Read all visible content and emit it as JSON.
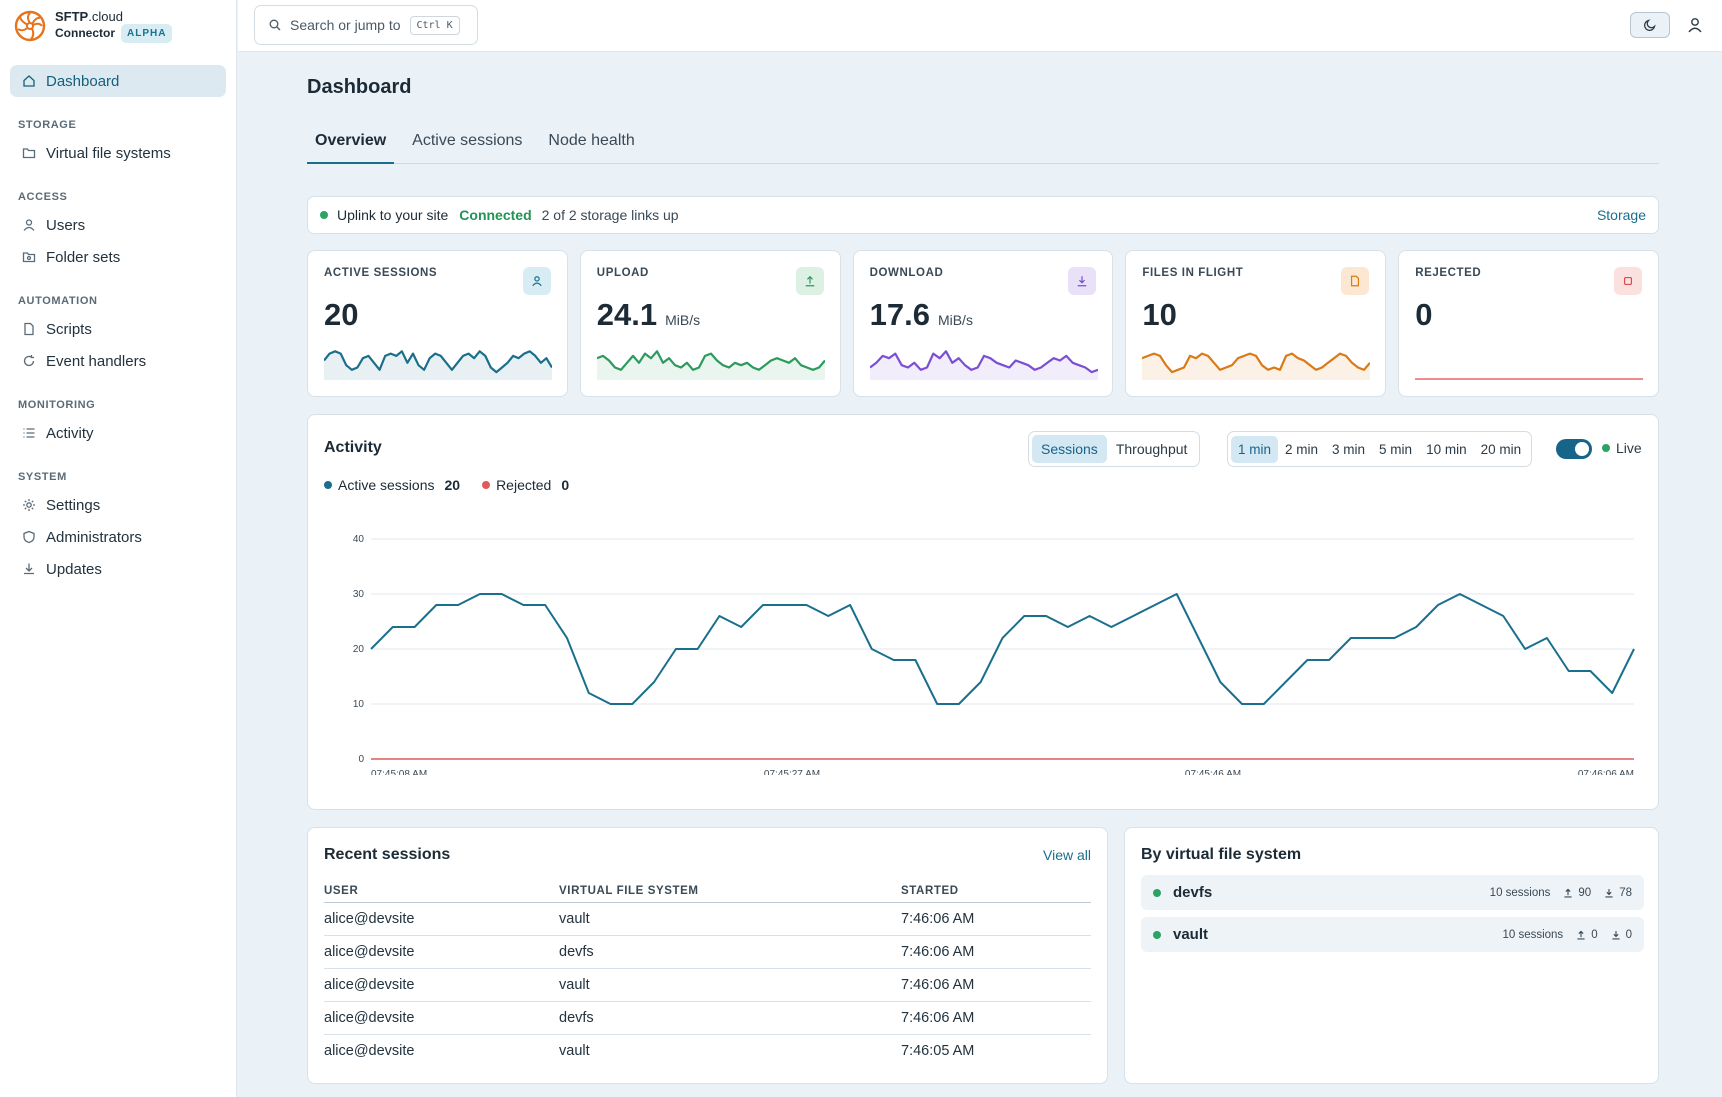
{
  "brand": {
    "name": "SFTP",
    "domain": ".cloud",
    "sub": "Connector",
    "badge": "ALPHA",
    "color": "#e8731a"
  },
  "sidebar": {
    "dashboard": "Dashboard",
    "sections": [
      {
        "title": "STORAGE",
        "items": [
          "Virtual file systems"
        ]
      },
      {
        "title": "ACCESS",
        "items": [
          "Users",
          "Folder sets"
        ]
      },
      {
        "title": "AUTOMATION",
        "items": [
          "Scripts",
          "Event handlers"
        ]
      },
      {
        "title": "MONITORING",
        "items": [
          "Activity"
        ]
      },
      {
        "title": "SYSTEM",
        "items": [
          "Settings",
          "Administrators",
          "Updates"
        ]
      }
    ]
  },
  "search": {
    "placeholder": "Search or jump to",
    "shortcut": "Ctrl K"
  },
  "page": {
    "title": "Dashboard"
  },
  "tabs": [
    "Overview",
    "Active sessions",
    "Node health"
  ],
  "uplink": {
    "label": "Uplink to your site",
    "status": "Connected",
    "links": "2 of 2 storage links up",
    "action": "Storage"
  },
  "stats": [
    {
      "label": "ACTIVE SESSIONS",
      "value": "20",
      "unit": "",
      "color": "#1a6f8c",
      "icon": "user-icon"
    },
    {
      "label": "UPLOAD",
      "value": "24.1",
      "unit": "MiB/s",
      "color": "#2c9a5c",
      "icon": "upload-icon"
    },
    {
      "label": "DOWNLOAD",
      "value": "17.6",
      "unit": "MiB/s",
      "color": "#7a4fd3",
      "icon": "download-icon"
    },
    {
      "label": "FILES IN FLIGHT",
      "value": "10",
      "unit": "",
      "color": "#d97a16",
      "icon": "file-icon"
    },
    {
      "label": "REJECTED",
      "value": "0",
      "unit": "",
      "color": "#e04848",
      "icon": "stop-icon"
    }
  ],
  "activity": {
    "title": "Activity",
    "views": [
      "Sessions",
      "Throughput"
    ],
    "active_view": "Sessions",
    "ranges": [
      "1 min",
      "2 min",
      "3 min",
      "5 min",
      "10 min",
      "20 min"
    ],
    "active_range": "1 min",
    "live_label": "Live",
    "legend": [
      {
        "name": "Active sessions",
        "value": "20",
        "color": "#1a6f8c"
      },
      {
        "name": "Rejected",
        "value": "0",
        "color": "#e05a5a"
      }
    ]
  },
  "chart_data": {
    "type": "line",
    "ylim": [
      0,
      40
    ],
    "yticks": [
      "0",
      "10",
      "20",
      "30",
      "40"
    ],
    "xticks": [
      "07:45:08 AM",
      "07:45:27 AM",
      "07:45:46 AM",
      "07:46:06 AM"
    ],
    "series": [
      {
        "name": "Active sessions",
        "values": [
          20,
          24,
          24,
          28,
          28,
          30,
          30,
          28,
          28,
          22,
          12,
          10,
          10,
          14,
          20,
          20,
          26,
          24,
          28,
          28,
          28,
          26,
          28,
          20,
          18,
          18,
          10,
          10,
          14,
          22,
          26,
          26,
          24,
          26,
          24,
          26,
          28,
          30,
          22,
          14,
          10,
          10,
          14,
          18,
          18,
          22,
          22,
          22,
          24,
          28,
          30,
          28,
          26,
          20,
          22,
          16,
          16,
          12,
          20
        ]
      },
      {
        "name": "Rejected",
        "values": [
          0,
          0,
          0,
          0,
          0,
          0,
          0,
          0,
          0,
          0,
          0,
          0,
          0,
          0,
          0,
          0,
          0,
          0,
          0,
          0,
          0,
          0,
          0,
          0,
          0,
          0,
          0,
          0,
          0,
          0,
          0,
          0,
          0,
          0,
          0,
          0,
          0,
          0,
          0,
          0,
          0,
          0,
          0,
          0,
          0,
          0,
          0,
          0,
          0,
          0,
          0,
          0,
          0,
          0,
          0,
          0,
          0,
          0,
          0
        ]
      }
    ]
  },
  "sparks": [
    [
      16,
      22,
      24,
      22,
      12,
      8,
      10,
      18,
      20,
      14,
      8,
      20,
      22,
      20,
      24,
      14,
      22,
      12,
      8,
      18,
      22,
      20,
      14,
      8,
      14,
      20,
      22,
      18,
      24,
      20,
      10,
      6,
      10,
      14,
      20,
      18,
      22,
      24,
      20,
      14,
      18,
      10
    ],
    [
      18,
      20,
      16,
      10,
      8,
      14,
      20,
      14,
      22,
      18,
      24,
      14,
      18,
      12,
      10,
      14,
      8,
      10,
      20,
      22,
      16,
      12,
      10,
      14,
      12,
      14,
      10,
      8,
      12,
      16,
      18,
      16,
      14,
      18,
      12,
      10,
      8,
      10,
      16
    ],
    [
      10,
      14,
      20,
      18,
      22,
      12,
      10,
      14,
      8,
      10,
      22,
      18,
      24,
      14,
      18,
      12,
      8,
      10,
      20,
      18,
      14,
      12,
      10,
      16,
      14,
      12,
      8,
      10,
      14,
      18,
      16,
      20,
      14,
      12,
      10,
      6,
      8
    ],
    [
      18,
      20,
      22,
      20,
      12,
      6,
      8,
      10,
      20,
      18,
      22,
      20,
      14,
      8,
      10,
      12,
      18,
      20,
      22,
      20,
      12,
      8,
      10,
      8,
      20,
      22,
      18,
      16,
      12,
      8,
      10,
      14,
      18,
      22,
      20,
      14,
      10,
      8,
      14
    ],
    [
      0,
      0,
      0,
      0,
      0,
      0,
      0,
      0,
      0,
      0,
      0,
      0,
      0,
      0,
      0,
      0,
      0,
      0,
      0,
      0,
      0,
      0,
      0,
      0
    ]
  ],
  "recent": {
    "title": "Recent sessions",
    "view_all": "View all",
    "columns": [
      "USER",
      "VIRTUAL FILE SYSTEM",
      "STARTED"
    ],
    "rows": [
      [
        "alice@devsite",
        "vault",
        "7:46:06 AM"
      ],
      [
        "alice@devsite",
        "devfs",
        "7:46:06 AM"
      ],
      [
        "alice@devsite",
        "vault",
        "7:46:06 AM"
      ],
      [
        "alice@devsite",
        "devfs",
        "7:46:06 AM"
      ],
      [
        "alice@devsite",
        "vault",
        "7:46:05 AM"
      ]
    ]
  },
  "byvfs": {
    "title": "By virtual file system",
    "items": [
      {
        "name": "devfs",
        "sessions": "10 sessions",
        "up": "90",
        "down": "78"
      },
      {
        "name": "vault",
        "sessions": "10 sessions",
        "up": "0",
        "down": "0"
      }
    ]
  }
}
